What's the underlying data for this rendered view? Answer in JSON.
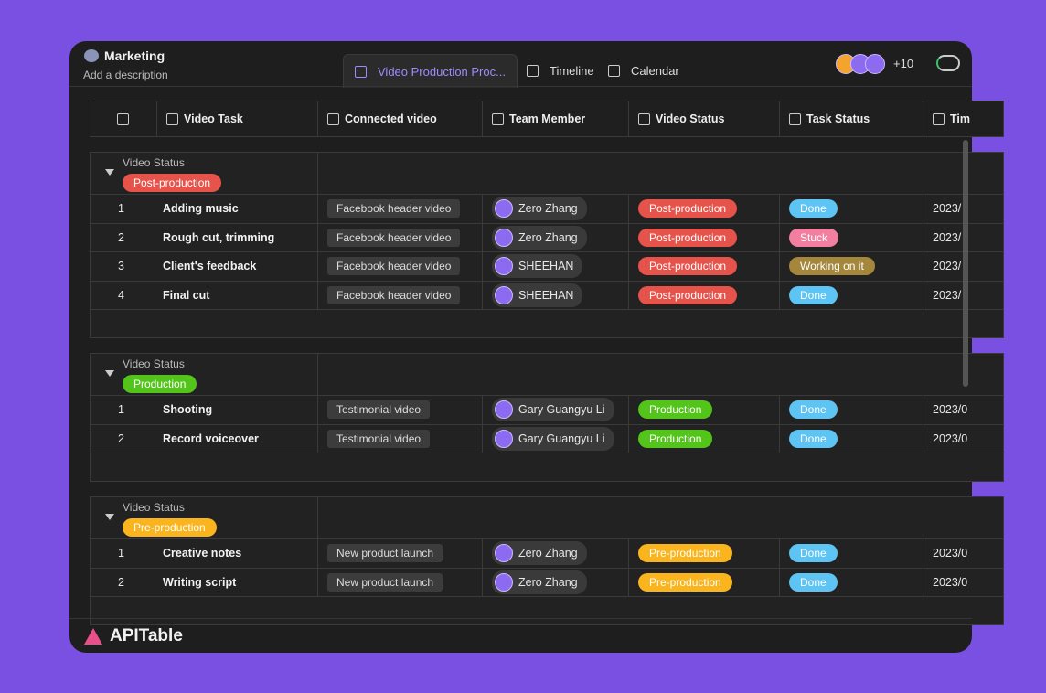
{
  "header": {
    "title": "Marketing",
    "description": "Add a description",
    "tabs": [
      "Video Production Proc...",
      "Timeline",
      "Calendar"
    ],
    "member_count": "+10"
  },
  "columns": [
    "Video Task",
    "Connected video",
    "Team Member",
    "Video Status",
    "Task Status",
    "Tim"
  ],
  "tag_colors": {
    "Post-production": "#e5534b",
    "Production": "#52c41a",
    "Pre-production": "#fab41e",
    "Done": "#5dc4f4",
    "Stuck": "#f27ea0",
    "Working on it": "#a4873a"
  },
  "groups": [
    {
      "label": "Video Status",
      "status": "Post-production",
      "rows": [
        {
          "num": "1",
          "task": "Adding music",
          "video": "Facebook header video",
          "member": "Zero Zhang",
          "status": "Post-production",
          "task_status": "Done",
          "time": "2023/"
        },
        {
          "num": "2",
          "task": "Rough cut, trimming",
          "video": "Facebook header video",
          "member": "Zero Zhang",
          "status": "Post-production",
          "task_status": "Stuck",
          "time": "2023/"
        },
        {
          "num": "3",
          "task": "Client's feedback",
          "video": "Facebook header video",
          "member": "SHEEHAN",
          "status": "Post-production",
          "task_status": "Working on it",
          "time": "2023/"
        },
        {
          "num": "4",
          "task": "Final cut",
          "video": "Facebook header video",
          "member": "SHEEHAN",
          "status": "Post-production",
          "task_status": "Done",
          "time": "2023/"
        }
      ]
    },
    {
      "label": "Video Status",
      "status": "Production",
      "rows": [
        {
          "num": "1",
          "task": "Shooting",
          "video": "Testimonial video",
          "member": "Gary Guangyu Li",
          "status": "Production",
          "task_status": "Done",
          "time": "2023/0"
        },
        {
          "num": "2",
          "task": "Record voiceover",
          "video": "Testimonial video",
          "member": "Gary Guangyu Li",
          "status": "Production",
          "task_status": "Done",
          "time": "2023/0"
        }
      ]
    },
    {
      "label": "Video Status",
      "status": "Pre-production",
      "rows": [
        {
          "num": "1",
          "task": "Creative notes",
          "video": "New product launch",
          "member": "Zero Zhang",
          "status": "Pre-production",
          "task_status": "Done",
          "time": "2023/0"
        },
        {
          "num": "2",
          "task": "Writing script",
          "video": "New product launch",
          "member": "Zero Zhang",
          "status": "Pre-production",
          "task_status": "Done",
          "time": "2023/0"
        }
      ]
    }
  ],
  "footer": {
    "brand": "APITable"
  }
}
